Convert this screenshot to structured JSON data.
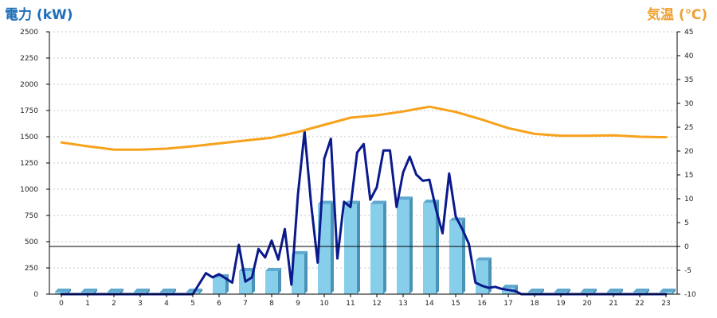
{
  "chart_data": {
    "type": "bar",
    "title": "",
    "xlabel": "",
    "ylabel": "電力 (kW)",
    "y2label": "気温 (℃)",
    "colors": {
      "bars": "#87ceeb",
      "bar_side": "#4a93b8",
      "power_line": "#0a1a8c",
      "temp_line": "#f7a21b",
      "grid": "#c8c8c8",
      "axis_label_left": "#1e6fb8",
      "axis_label_right": "#f0a030"
    },
    "grid": true,
    "ylim": [
      0,
      2500
    ],
    "y2lim": [
      -10,
      45
    ],
    "yticks": [
      0,
      250,
      500,
      750,
      1000,
      1250,
      1500,
      1750,
      2000,
      2250,
      2500
    ],
    "y2ticks": [
      -10,
      -5,
      0,
      5,
      10,
      15,
      20,
      25,
      30,
      35,
      40,
      45
    ],
    "categories": [
      "0",
      "1",
      "2",
      "3",
      "4",
      "5",
      "6",
      "7",
      "8",
      "9",
      "10",
      "11",
      "12",
      "13",
      "14",
      "15",
      "16",
      "17",
      "18",
      "19",
      "20",
      "21",
      "22",
      "23"
    ],
    "series": [
      {
        "kind": "bar",
        "axis": "left",
        "values": [
          0,
          0,
          0,
          0,
          0,
          20,
          160,
          220,
          220,
          380,
          860,
          860,
          860,
          900,
          870,
          700,
          320,
          60,
          0,
          0,
          0,
          0,
          0,
          0
        ]
      },
      {
        "kind": "line",
        "axis": "left",
        "x": [
          0,
          1,
          2,
          3,
          4,
          5,
          5.5,
          5.75,
          6,
          6.25,
          6.5,
          6.75,
          7,
          7.25,
          7.5,
          7.75,
          8,
          8.25,
          8.5,
          8.75,
          9,
          9.25,
          9.5,
          9.75,
          10,
          10.25,
          10.5,
          10.75,
          11,
          11.25,
          11.5,
          11.75,
          12,
          12.25,
          12.5,
          12.75,
          13,
          13.25,
          13.5,
          13.75,
          14,
          14.25,
          14.5,
          14.75,
          15,
          15.25,
          15.5,
          15.75,
          16,
          16.25,
          16.5,
          16.75,
          17,
          17.25,
          17.5,
          17.75,
          18,
          19,
          20,
          21,
          22,
          23
        ],
        "values": [
          0,
          0,
          0,
          0,
          0,
          0,
          200,
          160,
          190,
          150,
          110,
          470,
          120,
          160,
          430,
          350,
          510,
          330,
          620,
          90,
          950,
          1550,
          860,
          300,
          1290,
          1480,
          340,
          880,
          830,
          1350,
          1430,
          900,
          1020,
          1370,
          1370,
          830,
          1160,
          1310,
          1140,
          1080,
          1090,
          810,
          580,
          1150,
          740,
          620,
          480,
          110,
          80,
          60,
          70,
          50,
          40,
          30,
          0,
          0,
          0,
          0,
          0,
          0,
          0,
          0
        ]
      },
      {
        "kind": "line",
        "axis": "right",
        "x": [
          0,
          1,
          2,
          3,
          4,
          5,
          6,
          7,
          8,
          9,
          10,
          11,
          12,
          13,
          14,
          15,
          16,
          17,
          18,
          19,
          20,
          21,
          22,
          23
        ],
        "values": [
          21.8,
          21.0,
          20.3,
          20.3,
          20.5,
          21.0,
          21.6,
          22.2,
          22.8,
          24.0,
          25.5,
          27.0,
          27.5,
          28.3,
          29.3,
          28.2,
          26.6,
          24.8,
          23.6,
          23.2,
          23.2,
          23.3,
          23.0,
          22.9
        ]
      }
    ]
  }
}
